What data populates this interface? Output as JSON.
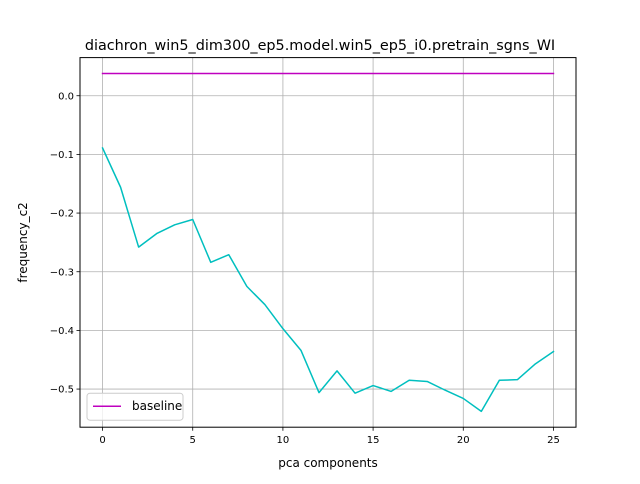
{
  "chart_data": {
    "type": "line",
    "title": "diachron_win5_dim300_ep5.model.win5_ep5_i0.pretrain_sgns_WI",
    "xlabel": "pca components",
    "ylabel": "frequency_c2",
    "xlim": [
      -1.25,
      26.25
    ],
    "ylim": [
      -0.565,
      0.065
    ],
    "xticks": [
      0,
      5,
      10,
      15,
      20,
      25
    ],
    "xtick_labels": [
      "0",
      "5",
      "10",
      "15",
      "20",
      "25"
    ],
    "yticks": [
      0.0,
      -0.1,
      -0.2,
      -0.3,
      -0.4,
      -0.5
    ],
    "ytick_labels": [
      "0.0",
      "−0.1",
      "−0.2",
      "−0.3",
      "−0.4",
      "−0.5"
    ],
    "grid": true,
    "legend_position": "lower-left",
    "series": [
      {
        "name": "baseline",
        "color": "#bf00bf",
        "in_legend": true,
        "x": [
          0,
          25
        ],
        "y": [
          0.038,
          0.038
        ]
      },
      {
        "color": "#00bfbf",
        "in_legend": false,
        "x": [
          0,
          1,
          2,
          3,
          4,
          5,
          6,
          7,
          8,
          9,
          10,
          11,
          12,
          13,
          14,
          15,
          16,
          17,
          18,
          19,
          20,
          21,
          22,
          23,
          24,
          25
        ],
        "y": [
          -0.089,
          -0.156,
          -0.258,
          -0.235,
          -0.22,
          -0.211,
          -0.284,
          -0.271,
          -0.325,
          -0.356,
          -0.397,
          -0.434,
          -0.506,
          -0.469,
          -0.507,
          -0.494,
          -0.504,
          -0.485,
          -0.487,
          -0.502,
          -0.516,
          -0.538,
          -0.485,
          -0.484,
          -0.457,
          -0.436
        ]
      }
    ]
  }
}
